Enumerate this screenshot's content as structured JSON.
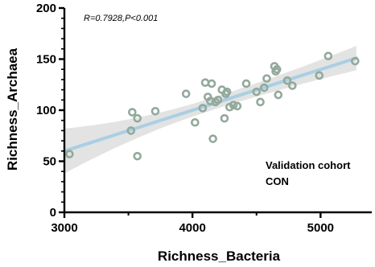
{
  "chart_data": {
    "type": "scatter",
    "xlabel": "Richness_Bacteria",
    "ylabel": "Richness_Archaea",
    "xlim": [
      3000,
      5400
    ],
    "ylim": [
      0,
      200
    ],
    "x_ticks": [
      3000,
      4000,
      5000
    ],
    "y_ticks": [
      0,
      50,
      100,
      150,
      200
    ],
    "grid": false,
    "annotation": "R=0.7928,P<0.001",
    "cohort_label_line1": "Validation cohort",
    "cohort_label_line2": "CON",
    "point_color": "#93a99b",
    "fit_color": "#a9cfe3",
    "band_color": "#d9d9d9",
    "regression": {
      "x_start": 3000,
      "y_start": 60,
      "x_end": 5280,
      "y_end": 151
    },
    "band_halfwidth": {
      "at_start": 22,
      "at_mid": 6,
      "at_end": 12
    },
    "points": [
      {
        "x": 3040,
        "y": 57
      },
      {
        "x": 3520,
        "y": 80
      },
      {
        "x": 3530,
        "y": 98
      },
      {
        "x": 3570,
        "y": 92
      },
      {
        "x": 3570,
        "y": 55
      },
      {
        "x": 3710,
        "y": 99
      },
      {
        "x": 3950,
        "y": 116
      },
      {
        "x": 4020,
        "y": 88
      },
      {
        "x": 4080,
        "y": 102
      },
      {
        "x": 4100,
        "y": 127
      },
      {
        "x": 4120,
        "y": 113
      },
      {
        "x": 4140,
        "y": 109
      },
      {
        "x": 4150,
        "y": 126
      },
      {
        "x": 4160,
        "y": 72
      },
      {
        "x": 4180,
        "y": 108
      },
      {
        "x": 4200,
        "y": 110
      },
      {
        "x": 4230,
        "y": 120
      },
      {
        "x": 4250,
        "y": 92
      },
      {
        "x": 4260,
        "y": 116
      },
      {
        "x": 4270,
        "y": 118
      },
      {
        "x": 4290,
        "y": 103
      },
      {
        "x": 4320,
        "y": 105
      },
      {
        "x": 4350,
        "y": 104
      },
      {
        "x": 4420,
        "y": 126
      },
      {
        "x": 4500,
        "y": 118
      },
      {
        "x": 4530,
        "y": 108
      },
      {
        "x": 4560,
        "y": 122
      },
      {
        "x": 4580,
        "y": 131
      },
      {
        "x": 4640,
        "y": 143
      },
      {
        "x": 4650,
        "y": 138
      },
      {
        "x": 4660,
        "y": 140
      },
      {
        "x": 4670,
        "y": 115
      },
      {
        "x": 4740,
        "y": 129
      },
      {
        "x": 4780,
        "y": 124
      },
      {
        "x": 4990,
        "y": 134
      },
      {
        "x": 5060,
        "y": 153
      },
      {
        "x": 5270,
        "y": 148
      }
    ]
  }
}
